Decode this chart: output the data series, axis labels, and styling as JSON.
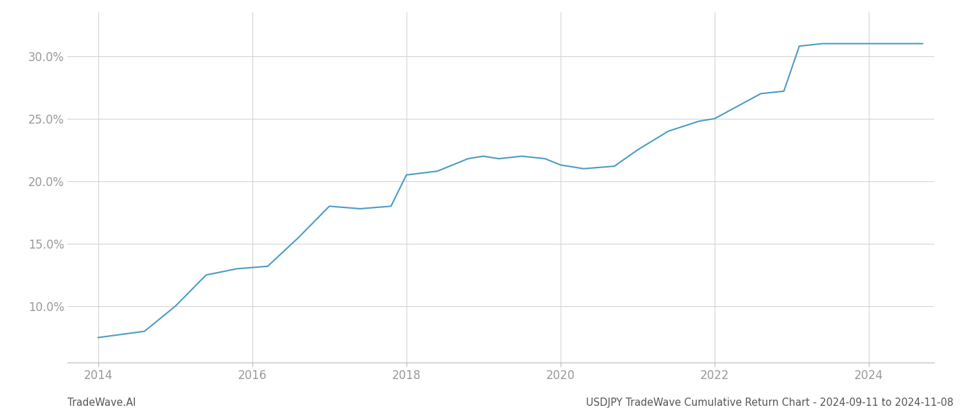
{
  "title": "",
  "footer_left": "TradeWave.AI",
  "footer_right": "USDJPY TradeWave Cumulative Return Chart - 2024-09-11 to 2024-11-08",
  "line_color": "#4a9bc4",
  "background_color": "#ffffff",
  "grid_color": "#d0d0d0",
  "x_values": [
    2014.0,
    2014.6,
    2015.0,
    2015.4,
    2015.8,
    2016.2,
    2016.6,
    2017.0,
    2017.4,
    2017.8,
    2018.0,
    2018.4,
    2018.8,
    2019.0,
    2019.2,
    2019.5,
    2019.8,
    2020.0,
    2020.3,
    2020.7,
    2021.0,
    2021.4,
    2021.8,
    2022.0,
    2022.3,
    2022.6,
    2022.9,
    2023.1,
    2023.4,
    2023.7,
    2024.0,
    2024.3,
    2024.7
  ],
  "y_values": [
    7.5,
    8.0,
    10.0,
    12.5,
    13.0,
    13.2,
    15.5,
    18.0,
    17.8,
    18.0,
    20.5,
    20.8,
    21.8,
    22.0,
    21.8,
    22.0,
    21.8,
    21.3,
    21.0,
    21.2,
    22.5,
    24.0,
    24.8,
    25.0,
    26.0,
    27.0,
    27.2,
    30.8,
    31.0,
    31.0,
    31.0,
    31.0,
    31.0
  ],
  "xlim": [
    2013.6,
    2024.85
  ],
  "ylim": [
    5.5,
    33.5
  ],
  "yticks": [
    10.0,
    15.0,
    20.0,
    25.0,
    30.0
  ],
  "xticks": [
    2014,
    2016,
    2018,
    2020,
    2022,
    2024
  ],
  "line_width": 1.5,
  "tick_label_color": "#999999",
  "footer_fontsize": 10.5,
  "tick_fontsize": 12
}
